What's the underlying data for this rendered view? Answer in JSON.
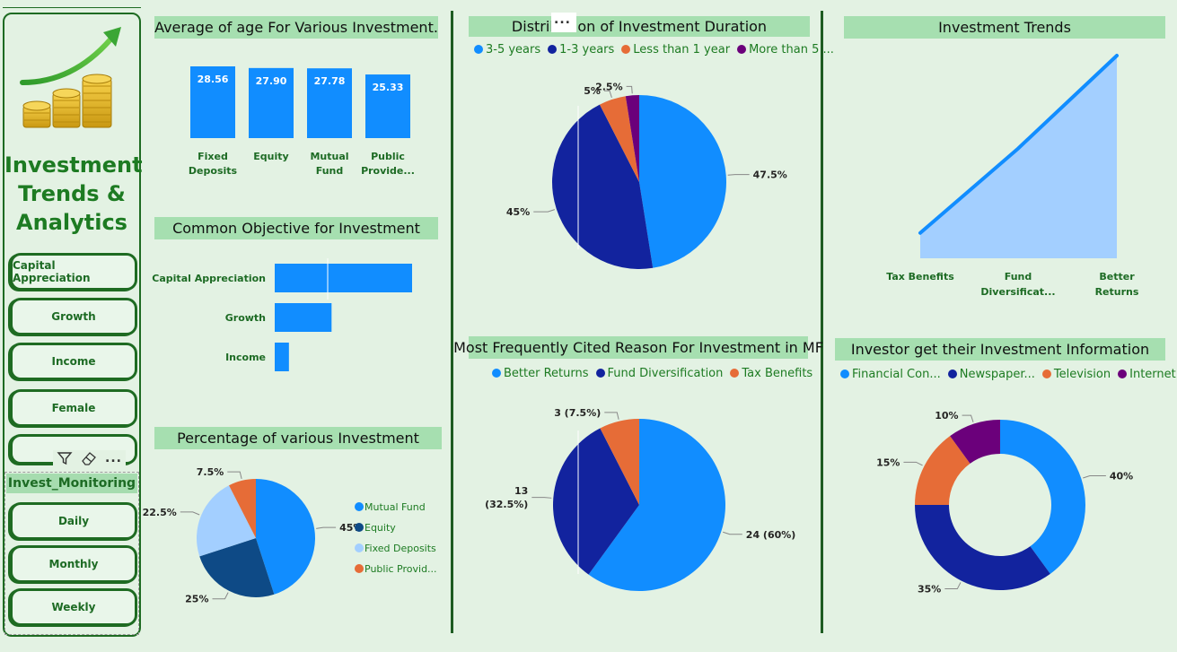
{
  "sidebar": {
    "app_title_lines": [
      "Investment",
      "Trends &",
      "Analytics"
    ],
    "objective_slicer": [
      "Capital Appreciation",
      "Growth",
      "Income",
      "Female"
    ],
    "monitoring_header": "Invest_Monitoring",
    "monitoring_slicer": [
      "Daily",
      "Monthly",
      "Weekly"
    ],
    "more_options": "..."
  },
  "colors": {
    "blue": "#118dff",
    "navy": "#12239e",
    "orange": "#e66c37",
    "purple": "#6b007b",
    "light_blue": "#a3cfff",
    "dark_blue": "#0e4a86",
    "title_green": "#1d7b22",
    "label_green": "#1d6b24"
  },
  "charts": {
    "age": {
      "title": "Average of age For Various Investment.",
      "chart_data": {
        "type": "bar",
        "categories": [
          [
            "Fixed",
            "Deposits"
          ],
          [
            "Equity"
          ],
          [
            "Mutual",
            "Fund"
          ],
          [
            "Public",
            "Provide..."
          ]
        ],
        "values": [
          28.56,
          27.9,
          27.78,
          25.33
        ],
        "value_labels": [
          "28.56",
          "27.90",
          "27.78",
          "25.33"
        ]
      }
    },
    "objective": {
      "title": "Common Objective for Investment",
      "chart_data": {
        "type": "bar",
        "orientation": "horizontal",
        "categories": [
          "Capital Appreciation",
          "Growth",
          "Income"
        ],
        "values": [
          29,
          12,
          3
        ]
      }
    },
    "percentage": {
      "title": "Percentage of various Investment",
      "chart_data": {
        "type": "pie",
        "labels": [
          "Mutual Fund",
          "Equity",
          "Fixed Deposits",
          "Public Provid..."
        ],
        "values": [
          45,
          25,
          22.5,
          7.5
        ],
        "value_labels": [
          "45%",
          "25%",
          "22.5%",
          "7.5%"
        ],
        "colors": [
          "#118dff",
          "#0e4a86",
          "#a3cfff",
          "#e66c37"
        ],
        "legend_position": "right"
      }
    },
    "duration": {
      "title": "Distribution of Investment Duration",
      "chart_data": {
        "type": "pie",
        "labels": [
          "3-5 years",
          "1-3 years",
          "Less than 1 year",
          "More than 5 ..."
        ],
        "values": [
          47.5,
          45,
          5,
          2.5
        ],
        "value_labels": [
          "47.5%",
          "45%",
          "5%",
          "2.5%"
        ],
        "colors": [
          "#118dff",
          "#12239e",
          "#e66c37",
          "#6b007b"
        ],
        "legend_position": "top"
      }
    },
    "reason": {
      "title": "Most Frequently Cited Reason For Investment in MF",
      "chart_data": {
        "type": "pie",
        "labels": [
          "Better Returns",
          "Fund Diversification",
          "Tax Benefits"
        ],
        "values": [
          24,
          13,
          3
        ],
        "value_labels": [
          [
            "24 (60%)"
          ],
          [
            "13",
            "(32.5%)"
          ],
          [
            "3 (7.5%)"
          ]
        ],
        "colors": [
          "#118dff",
          "#12239e",
          "#e66c37"
        ],
        "legend_position": "top"
      }
    },
    "trends": {
      "title": "Investment Trends",
      "chart_data": {
        "type": "area",
        "categories": [
          [
            "Tax Benefits"
          ],
          [
            "Fund",
            "Diversificat..."
          ],
          [
            "Better",
            "Returns"
          ]
        ],
        "values": [
          3,
          13,
          24
        ]
      }
    },
    "info": {
      "title": "Investor get their Investment Information",
      "chart_data": {
        "type": "pie",
        "donut": true,
        "labels": [
          "Financial Con...",
          "Newspaper...",
          "Television",
          "Internet"
        ],
        "values": [
          40,
          35,
          15,
          10
        ],
        "value_labels": [
          "40%",
          "35%",
          "15%",
          "10%"
        ],
        "colors": [
          "#118dff",
          "#12239e",
          "#e66c37",
          "#6b007b"
        ],
        "legend_position": "top"
      }
    }
  }
}
